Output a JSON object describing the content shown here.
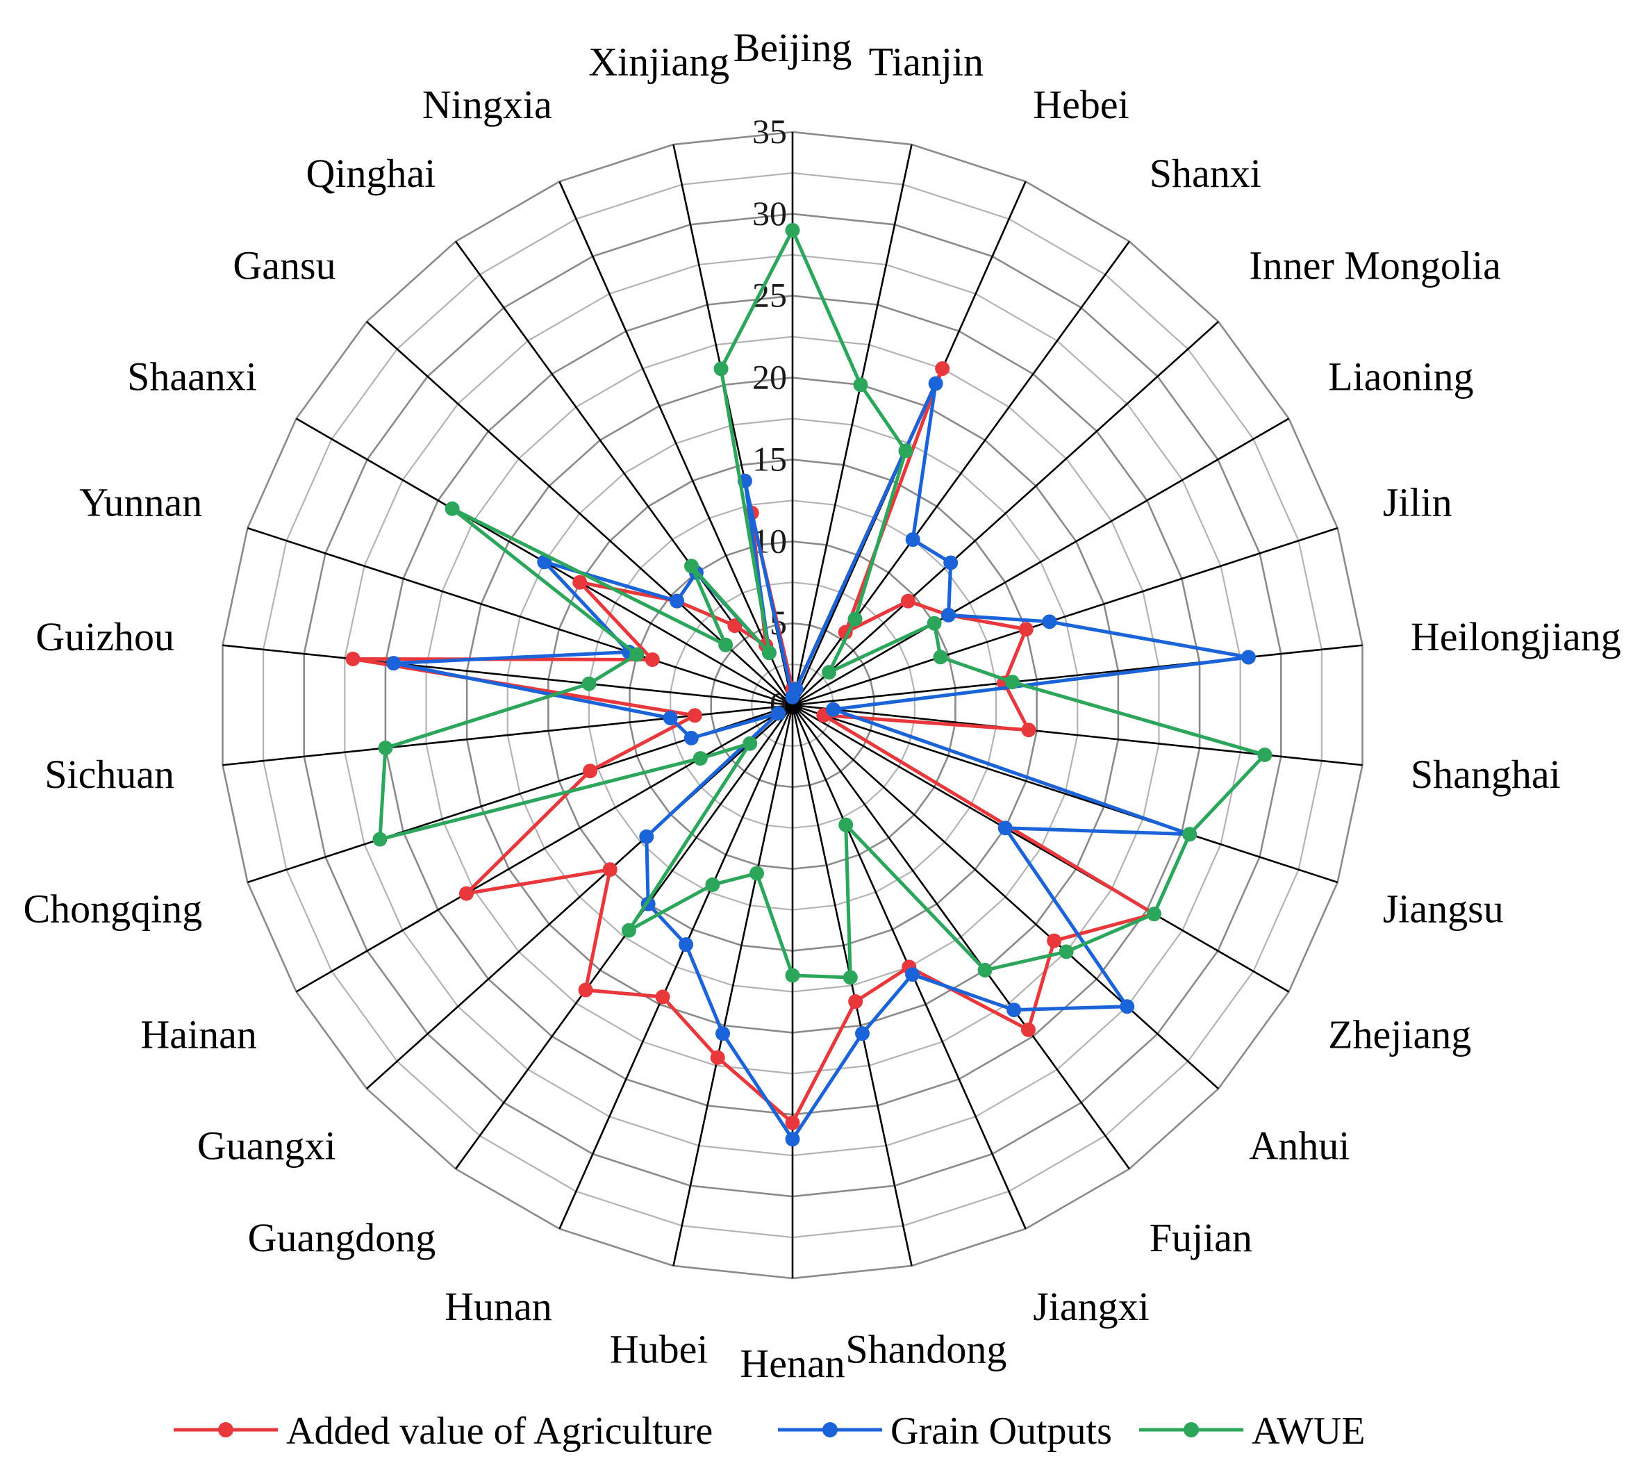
{
  "chart_data": {
    "type": "radar",
    "categories": [
      "Beijing",
      "Tianjin",
      "Hebei",
      "Shanxi",
      "Inner Mongolia",
      "Liaoning",
      "Jilin",
      "Heilongjiang",
      "Shanghai",
      "Jiangsu",
      "Zhejiang",
      "Anhui",
      "Fujian",
      "Jiangxi",
      "Shandong",
      "Henan",
      "Hubei",
      "Hunan",
      "Guangdong",
      "Guangxi",
      "Hainan",
      "Chongqing",
      "Sichuan",
      "Guizhou",
      "Yunnan",
      "Shaanxi",
      "Gansu",
      "Qinghai",
      "Ningxia",
      "Xinjiang"
    ],
    "axis": {
      "min": 0,
      "max": 35,
      "ticks": [
        0,
        5,
        10,
        15,
        20,
        25,
        30,
        35
      ]
    },
    "series": [
      {
        "name": "Added value of Agriculture",
        "color": "#e8383b",
        "values": [
          1.0,
          1.0,
          22.5,
          5.5,
          9.5,
          11.0,
          15.0,
          13.0,
          14.5,
          2.0,
          25.5,
          21.5,
          24.5,
          17.5,
          18.5,
          25.5,
          22.0,
          19.5,
          21.5,
          15.0,
          23.0,
          13.0,
          6.0,
          27.0,
          9.0,
          15.0,
          9.5,
          6.0,
          4.0,
          12.0
        ]
      },
      {
        "name": "Grain Outputs",
        "color": "#1a63d8",
        "values": [
          0.5,
          1.0,
          21.5,
          12.5,
          13.0,
          11.0,
          16.5,
          28.0,
          2.5,
          25.5,
          15.0,
          27.5,
          23.0,
          18.0,
          20.5,
          26.5,
          20.5,
          16.0,
          15.0,
          12.0,
          1.0,
          6.5,
          7.5,
          24.5,
          10.5,
          17.5,
          9.5,
          10.0,
          3.5,
          14.0
        ]
      },
      {
        "name": "AWUE",
        "color": "#2ca65b",
        "values": [
          29.0,
          20.0,
          17.0,
          6.5,
          3.0,
          10.0,
          9.5,
          13.5,
          29.0,
          25.5,
          25.5,
          22.5,
          20.0,
          8.0,
          17.0,
          16.5,
          10.5,
          12.0,
          17.0,
          3.5,
          6.5,
          26.5,
          25.0,
          12.5,
          10.0,
          24.0,
          5.5,
          10.5,
          3.5,
          21.0
        ]
      }
    ],
    "legend_position": "bottom",
    "grid": true
  }
}
